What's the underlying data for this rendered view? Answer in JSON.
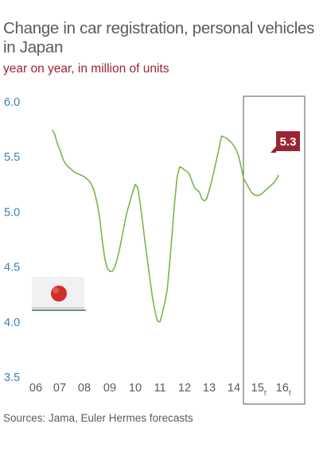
{
  "chart_data": {
    "type": "line",
    "title": "Change in car registration, personal vehicles in Japan",
    "subtitle": "year on year, in million of units",
    "source": "Sources: Jama, Euler Hermes forecasts",
    "xlabel": "",
    "ylabel": "",
    "ylim": [
      3.5,
      6.0
    ],
    "yticks": [
      "3.5",
      "4.0",
      "4.5",
      "5.0",
      "5.5",
      "6.0"
    ],
    "xlim": [
      2006,
      2017
    ],
    "xticks": [
      {
        "label": "06",
        "sub": ""
      },
      {
        "label": "07",
        "sub": ""
      },
      {
        "label": "08",
        "sub": ""
      },
      {
        "label": "09",
        "sub": ""
      },
      {
        "label": "10",
        "sub": ""
      },
      {
        "label": "11",
        "sub": ""
      },
      {
        "label": "12",
        "sub": ""
      },
      {
        "label": "13",
        "sub": ""
      },
      {
        "label": "14",
        "sub": ""
      },
      {
        "label": "15",
        "sub": "f"
      },
      {
        "label": "16",
        "sub": "f"
      }
    ],
    "forecast_box": {
      "from": 2014.9,
      "to": 2016.9
    },
    "annotation": {
      "label": "5.3"
    },
    "grid": false,
    "colors": {
      "line": "#7ab648",
      "annotation": "#9b2335",
      "yaxis_text": "#3a7fb8",
      "box": "#555555"
    },
    "series": [
      {
        "name": "",
        "points": [
          [
            2006.7,
            5.74
          ],
          [
            2006.8,
            5.7
          ],
          [
            2006.9,
            5.62
          ],
          [
            2007.0,
            5.57
          ],
          [
            2007.1,
            5.5
          ],
          [
            2007.2,
            5.45
          ],
          [
            2007.3,
            5.42
          ],
          [
            2007.4,
            5.4
          ],
          [
            2007.5,
            5.38
          ],
          [
            2007.6,
            5.36
          ],
          [
            2007.7,
            5.35
          ],
          [
            2007.8,
            5.34
          ],
          [
            2007.9,
            5.33
          ],
          [
            2008.0,
            5.32
          ],
          [
            2008.1,
            5.3
          ],
          [
            2008.2,
            5.28
          ],
          [
            2008.3,
            5.24
          ],
          [
            2008.4,
            5.18
          ],
          [
            2008.5,
            5.08
          ],
          [
            2008.6,
            4.95
          ],
          [
            2008.7,
            4.75
          ],
          [
            2008.8,
            4.58
          ],
          [
            2008.9,
            4.49
          ],
          [
            2009.0,
            4.46
          ],
          [
            2009.1,
            4.46
          ],
          [
            2009.2,
            4.5
          ],
          [
            2009.3,
            4.58
          ],
          [
            2009.4,
            4.68
          ],
          [
            2009.5,
            4.8
          ],
          [
            2009.6,
            4.92
          ],
          [
            2009.7,
            5.02
          ],
          [
            2009.8,
            5.1
          ],
          [
            2009.9,
            5.18
          ],
          [
            2010.0,
            5.25
          ],
          [
            2010.1,
            5.22
          ],
          [
            2010.2,
            5.08
          ],
          [
            2010.3,
            4.9
          ],
          [
            2010.4,
            4.72
          ],
          [
            2010.5,
            4.55
          ],
          [
            2010.6,
            4.38
          ],
          [
            2010.7,
            4.22
          ],
          [
            2010.8,
            4.1
          ],
          [
            2010.9,
            4.01
          ],
          [
            2011.0,
            4.0
          ],
          [
            2011.1,
            4.08
          ],
          [
            2011.2,
            4.18
          ],
          [
            2011.3,
            4.3
          ],
          [
            2011.4,
            4.55
          ],
          [
            2011.5,
            4.82
          ],
          [
            2011.6,
            5.1
          ],
          [
            2011.7,
            5.32
          ],
          [
            2011.8,
            5.41
          ],
          [
            2011.9,
            5.4
          ],
          [
            2012.0,
            5.38
          ],
          [
            2012.1,
            5.37
          ],
          [
            2012.2,
            5.34
          ],
          [
            2012.3,
            5.28
          ],
          [
            2012.4,
            5.22
          ],
          [
            2012.5,
            5.2
          ],
          [
            2012.6,
            5.18
          ],
          [
            2012.7,
            5.12
          ],
          [
            2012.8,
            5.1
          ],
          [
            2012.9,
            5.12
          ],
          [
            2013.0,
            5.2
          ],
          [
            2013.1,
            5.28
          ],
          [
            2013.2,
            5.38
          ],
          [
            2013.3,
            5.48
          ],
          [
            2013.4,
            5.58
          ],
          [
            2013.5,
            5.69
          ],
          [
            2013.6,
            5.68
          ],
          [
            2013.7,
            5.67
          ],
          [
            2013.8,
            5.65
          ],
          [
            2013.9,
            5.63
          ],
          [
            2014.0,
            5.6
          ],
          [
            2014.1,
            5.56
          ],
          [
            2014.2,
            5.5
          ],
          [
            2014.3,
            5.4
          ],
          [
            2014.4,
            5.3
          ],
          [
            2014.5,
            5.26
          ],
          [
            2014.6,
            5.22
          ],
          [
            2014.7,
            5.18
          ],
          [
            2014.8,
            5.16
          ],
          [
            2014.9,
            5.15
          ],
          [
            2015.0,
            5.15
          ],
          [
            2015.1,
            5.16
          ],
          [
            2015.2,
            5.18
          ],
          [
            2015.3,
            5.2
          ],
          [
            2015.4,
            5.22
          ],
          [
            2015.5,
            5.24
          ],
          [
            2015.6,
            5.26
          ],
          [
            2015.7,
            5.29
          ],
          [
            2015.8,
            5.33
          ]
        ]
      }
    ],
    "legend": {
      "items": [
        {
          "label": "",
          "icon": "japan-flag-icon"
        }
      ]
    }
  }
}
